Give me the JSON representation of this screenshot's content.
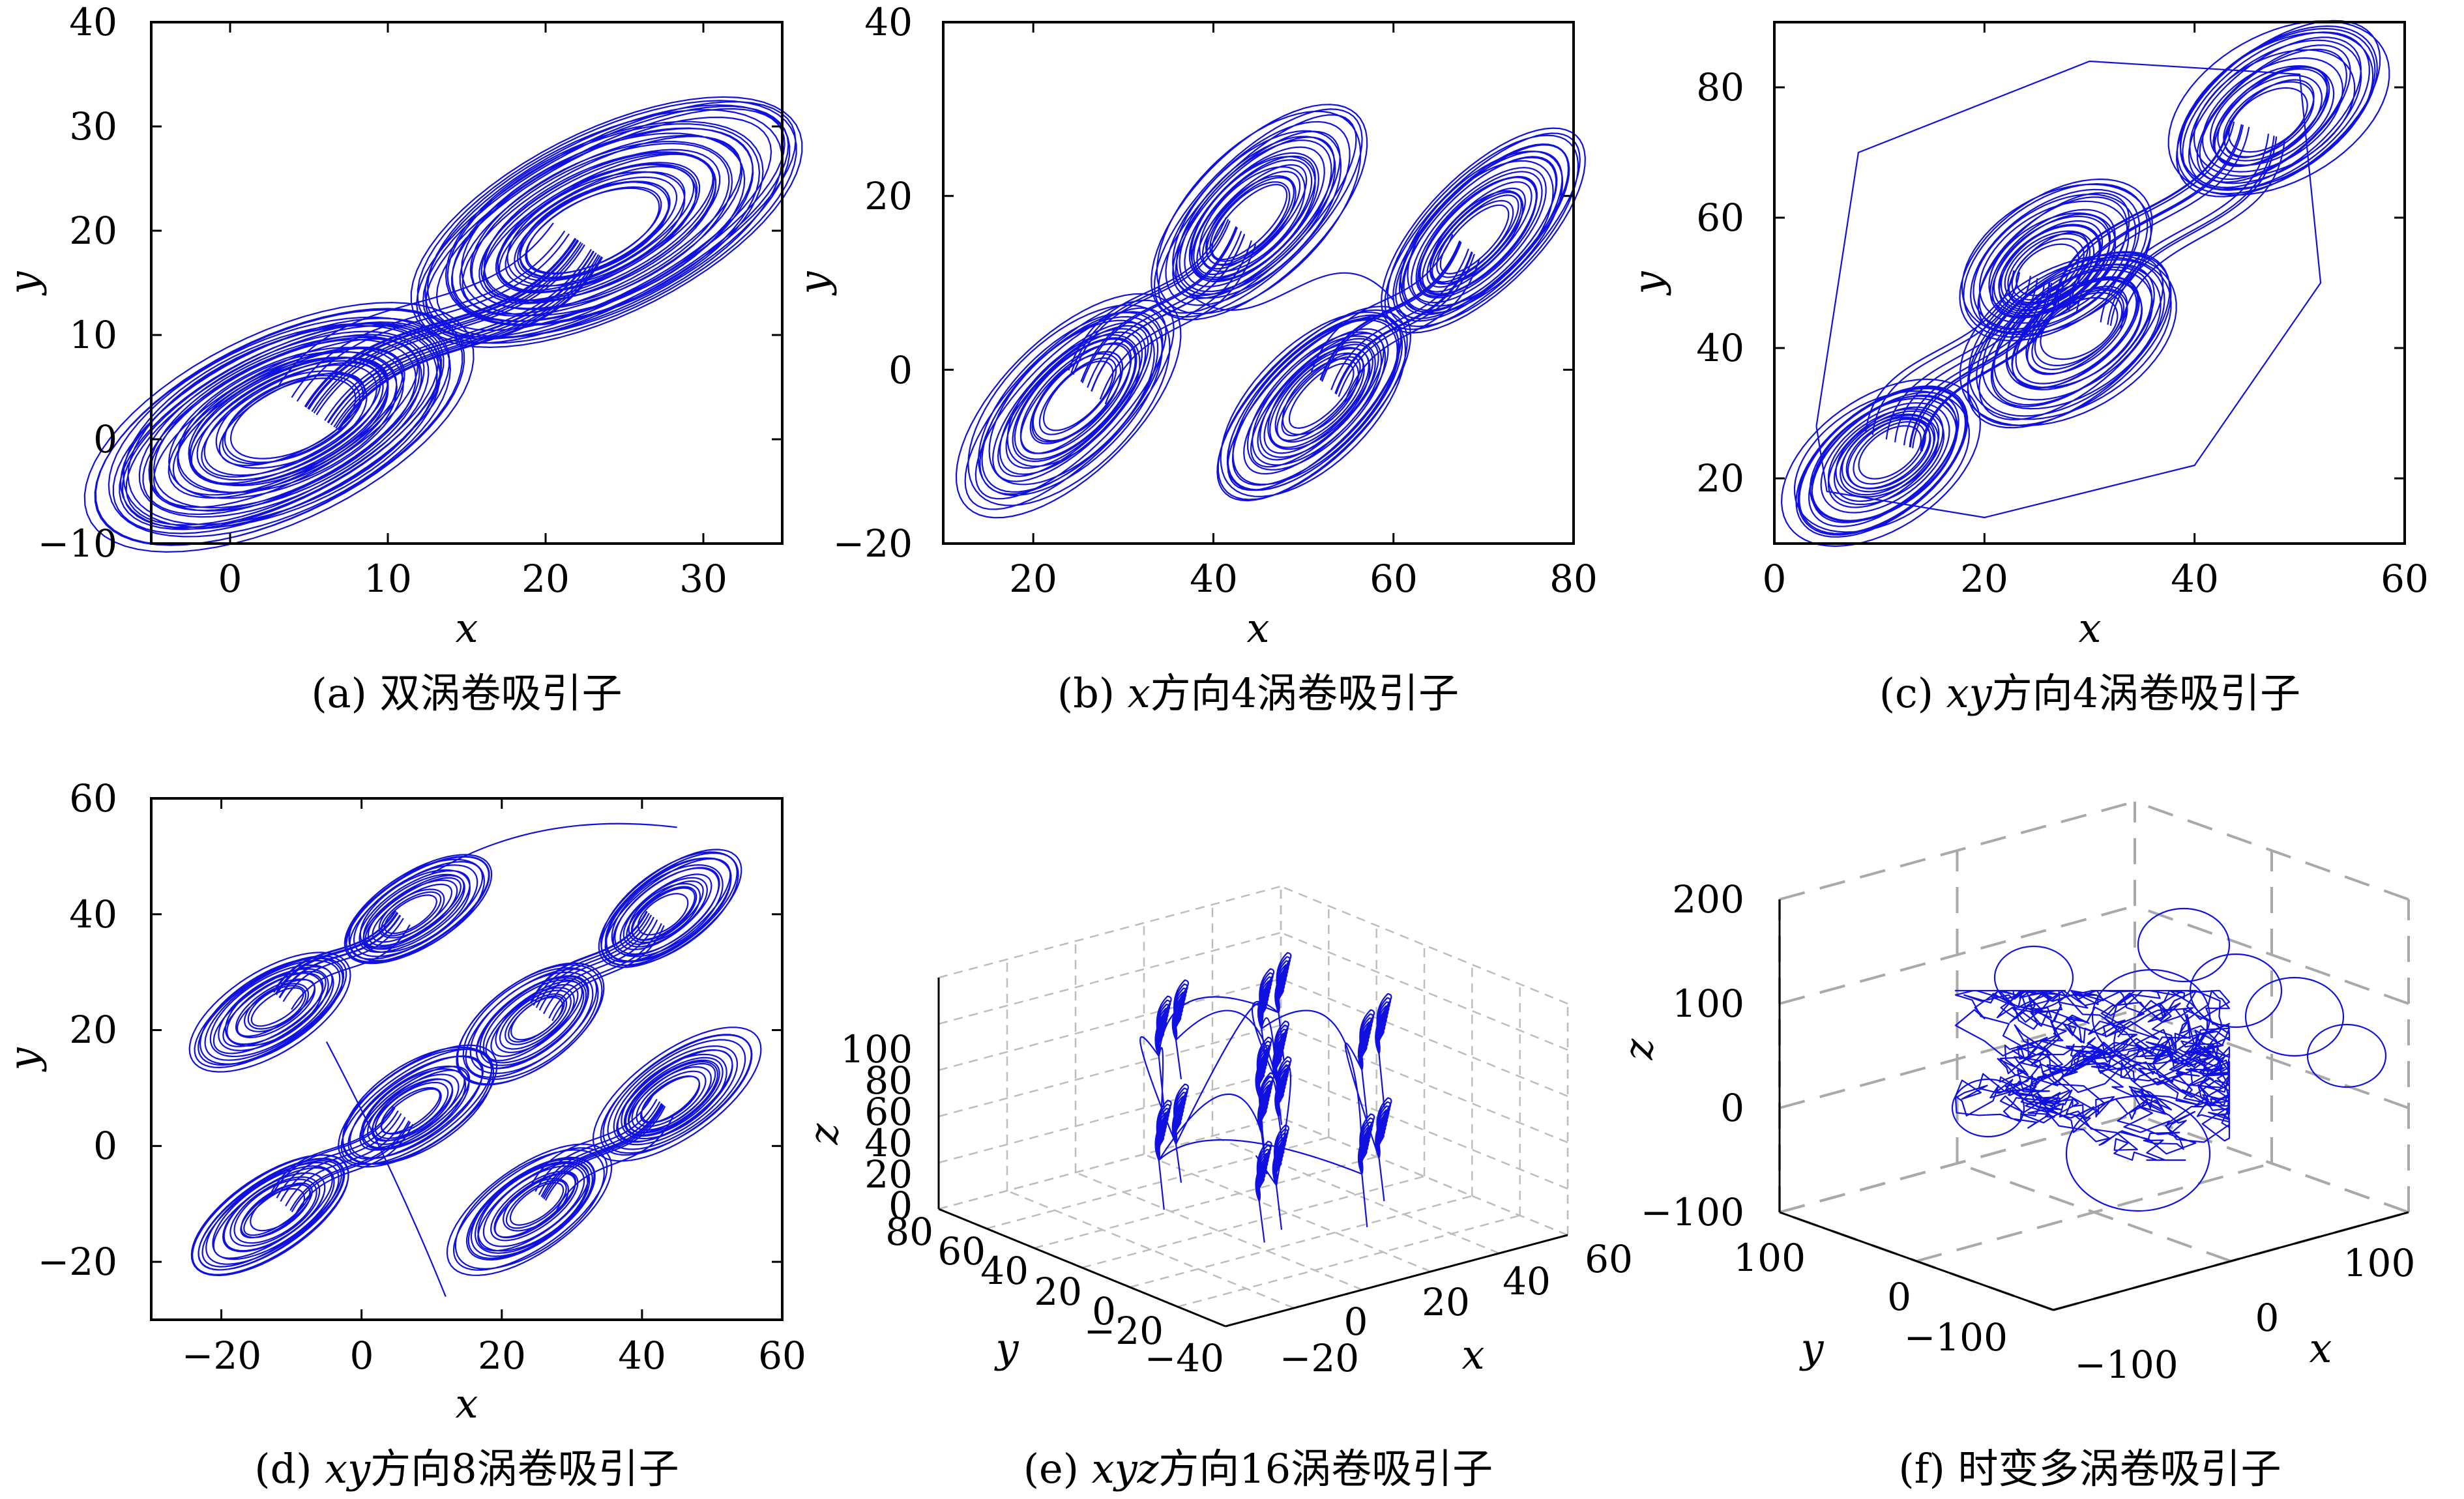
{
  "chart_data": [
    {
      "type": "line",
      "caption": "(a) 双涡卷吸引子",
      "xlabel": "x",
      "ylabel": "y",
      "xlim": [
        -5,
        35
      ],
      "ylim": [
        -10,
        40
      ],
      "xticks": [
        "0",
        "10",
        "20",
        "30"
      ],
      "yticks": [
        "−10",
        "0",
        "10",
        "20",
        "30",
        "40"
      ],
      "color": "#1010e0",
      "scrolls": [
        {
          "x": 4,
          "y": 2
        },
        {
          "x": 23,
          "y": 20
        }
      ]
    },
    {
      "type": "line",
      "caption": "(b) x方向4涡卷吸引子",
      "caption_label": "(b)",
      "caption_var": "x",
      "caption_rest": "方向4涡卷吸引子",
      "xlabel": "x",
      "ylabel": "y",
      "xlim": [
        10,
        80
      ],
      "ylim": [
        -20,
        40
      ],
      "xticks": [
        "20",
        "40",
        "60",
        "80"
      ],
      "yticks": [
        "−20",
        "0",
        "20",
        "40"
      ],
      "color": "#1010e0",
      "scrolls": [
        {
          "x": 25,
          "y": -3
        },
        {
          "x": 44,
          "y": 17
        },
        {
          "x": 52,
          "y": -3
        },
        {
          "x": 69,
          "y": 15
        }
      ]
    },
    {
      "type": "line",
      "caption": "(c) xy方向4涡卷吸引子",
      "caption_label": "(c)",
      "caption_var": "xy",
      "caption_rest": "方向4涡卷吸引子",
      "xlabel": "x",
      "ylabel": "y",
      "xlim": [
        0,
        60
      ],
      "ylim": [
        10,
        90
      ],
      "xticks": [
        "0",
        "20",
        "40",
        "60"
      ],
      "yticks": [
        "20",
        "40",
        "60",
        "80"
      ],
      "color": "#1010e0",
      "scrolls": [
        {
          "x": 11,
          "y": 24
        },
        {
          "x": 26,
          "y": 52
        },
        {
          "x": 29,
          "y": 43
        },
        {
          "x": 47,
          "y": 75
        }
      ]
    },
    {
      "type": "line",
      "caption": "(d) xy方向8涡卷吸引子",
      "caption_label": "(d)",
      "caption_var": "xy",
      "caption_rest": "方向8涡卷吸引子",
      "xlabel": "x",
      "ylabel": "y",
      "xlim": [
        -30,
        60
      ],
      "ylim": [
        -30,
        60
      ],
      "xticks": [
        "−20",
        "0",
        "20",
        "40",
        "60"
      ],
      "yticks": [
        "−20",
        "0",
        "20",
        "40",
        "60"
      ],
      "color": "#1010e0",
      "scrolls": [
        {
          "x": -12,
          "y": 24
        },
        {
          "x": 7,
          "y": 40
        },
        {
          "x": 25,
          "y": 22
        },
        {
          "x": 43,
          "y": 40
        },
        {
          "x": -12,
          "y": -11
        },
        {
          "x": 7,
          "y": 6
        },
        {
          "x": 25,
          "y": -10
        },
        {
          "x": 44,
          "y": 8
        }
      ]
    },
    {
      "type": "line",
      "caption": "(e) xyz方向16涡卷吸引子",
      "caption_label": "(e)",
      "caption_var": "xyz",
      "caption_rest": "方向16涡卷吸引子",
      "xlabel": "x",
      "ylabel": "y",
      "zlabel": "z",
      "xticks": [
        "−20",
        "0",
        "20",
        "40",
        "60"
      ],
      "yticks": [
        "−40",
        "−20",
        "0",
        "20",
        "40",
        "60",
        "80"
      ],
      "zticks": [
        "0",
        "20",
        "40",
        "60",
        "80",
        "100"
      ],
      "color": "#1010e0",
      "projection": "3d"
    },
    {
      "type": "line",
      "caption": "(f) 时变多涡卷吸引子",
      "xlabel": "x",
      "ylabel": "y",
      "zlabel": "z",
      "xticks": [
        "−100",
        "0",
        "100"
      ],
      "yticks": [
        "−100",
        "0",
        "100"
      ],
      "zticks": [
        "−100",
        "0",
        "100",
        "200"
      ],
      "color": "#1010e0",
      "projection": "3d"
    }
  ]
}
